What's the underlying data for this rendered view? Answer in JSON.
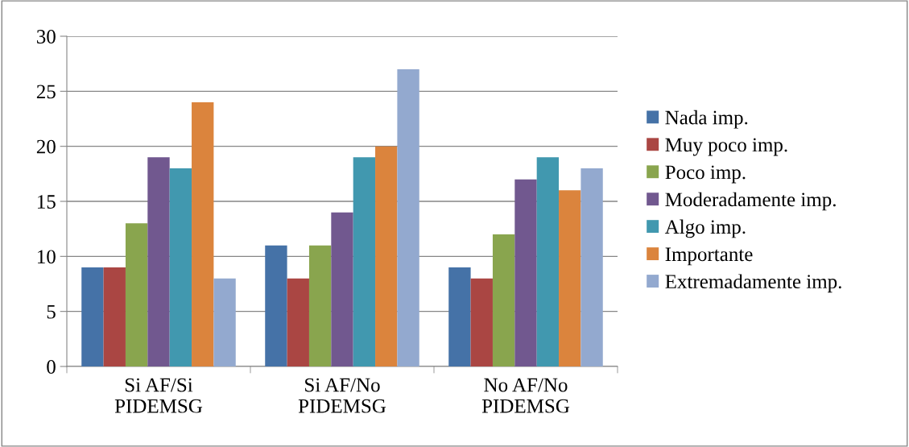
{
  "chart_data": {
    "type": "bar",
    "categories": [
      "Si AF/Si\nPIDEMSG",
      "Si AF/No\nPIDEMSG",
      "No AF/No\nPIDEMSG"
    ],
    "series": [
      {
        "name": "Nada imp.",
        "color": "#4572a7",
        "values": [
          9,
          11,
          9
        ]
      },
      {
        "name": "Muy poco imp.",
        "color": "#aa4643",
        "values": [
          9,
          8,
          8
        ]
      },
      {
        "name": "Poco imp.",
        "color": "#89a54e",
        "values": [
          13,
          11,
          12
        ]
      },
      {
        "name": "Moderadamente imp.",
        "color": "#71588f",
        "values": [
          19,
          14,
          17
        ]
      },
      {
        "name": "Algo imp.",
        "color": "#4198af",
        "values": [
          18,
          19,
          19
        ]
      },
      {
        "name": "Importante",
        "color": "#db843d",
        "values": [
          24,
          20,
          16
        ]
      },
      {
        "name": "Extremadamente imp.",
        "color": "#93a9cf",
        "values": [
          8,
          27,
          18
        ]
      }
    ],
    "ylim": [
      0,
      30
    ],
    "yticks": [
      0,
      5,
      10,
      15,
      20,
      25,
      30
    ],
    "grid": "y",
    "legend": "right"
  }
}
